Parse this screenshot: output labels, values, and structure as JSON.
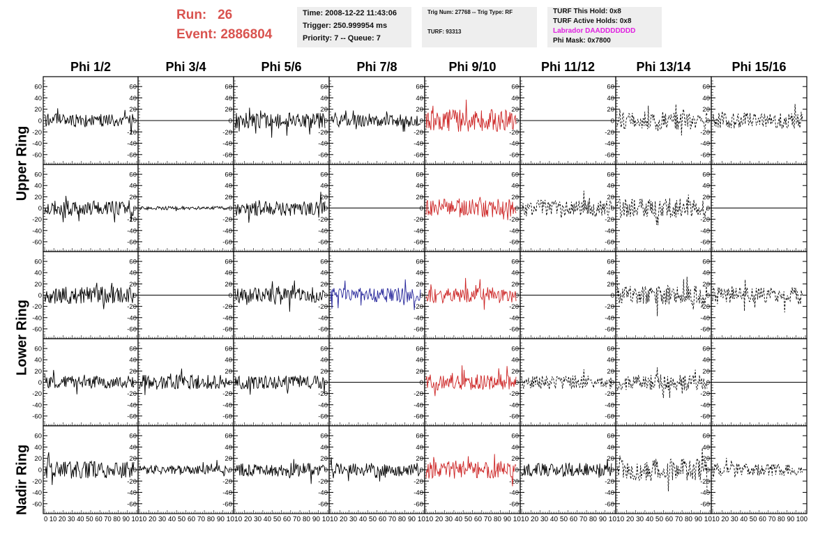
{
  "run_event": {
    "run_label": "Run:",
    "run_value": "26",
    "event_label": "Event:",
    "event_value": "2886804"
  },
  "info_time": {
    "time": "Time: 2008-12-22 11:43:06",
    "trigger": "Trigger: 250.999954 ms",
    "priority": "Priority: 7 -- Queue: 7"
  },
  "info_trig": {
    "trig": "Trig Num: 27768 -- Trig Type: RF",
    "turf": "TURF: 93313"
  },
  "info_turf": {
    "this_hold": "TURF This Hold: 0x8",
    "active_holds": "TURF Active Holds: 0x8",
    "labrador": "Labrador DAADDDDDDD",
    "phi_mask": "Phi Mask: 0x7800",
    "labrador_color": "#e020e0"
  },
  "columns": [
    "Phi 1/2",
    "Phi 3/4",
    "Phi 5/6",
    "Phi 7/8",
    "Phi 9/10",
    "Phi 11/12",
    "Phi 13/14",
    "Phi 15/16"
  ],
  "rows": [
    "Upper Ring",
    "Lower Ring",
    "Nadir Ring"
  ],
  "colors": {
    "black": "#000000",
    "red": "#cc2222",
    "blue": "#222299",
    "title": "#d9534f"
  },
  "chart_data": {
    "type": "line",
    "title": "",
    "x_ticks": [
      "0",
      "10",
      "20",
      "30",
      "40",
      "50",
      "60",
      "70",
      "80",
      "90",
      "100"
    ],
    "x_tick_strip_text": [
      "0 10 20 30 40 50 60 70 80 90 10",
      "10 20 30 40 50 60 70 80 90 10",
      "10 20 30 40 50 60 70 80 90 10",
      "10 20 30 40 50 60 70 80 90 10",
      "10 20 30 40 50 60 70 80 90 10",
      "10 20 30 40 50 60 70 80 90 10",
      "10 20 30 40 50 60 70 80 90 10",
      "10 20 30 40 50 60 70 80 90 100"
    ],
    "y_ticks": [
      "60",
      "40",
      "20",
      "0",
      "-20",
      "-40",
      "-60"
    ],
    "ylim": [
      -75,
      75
    ],
    "xlim": [
      0,
      100
    ],
    "panel_rows": 5,
    "panel_cols": 8,
    "panels": [
      {
        "row": 0,
        "col": 0,
        "style": "solid",
        "color": "black",
        "amp": 12,
        "seed": 11
      },
      {
        "row": 0,
        "col": 1,
        "style": "flat",
        "color": "black",
        "amp": 0,
        "seed": 12
      },
      {
        "row": 0,
        "col": 2,
        "style": "solid",
        "color": "black",
        "amp": 14,
        "seed": 13
      },
      {
        "row": 0,
        "col": 3,
        "style": "solid",
        "color": "black",
        "amp": 11,
        "seed": 14
      },
      {
        "row": 0,
        "col": 4,
        "style": "solid",
        "color": "red",
        "amp": 20,
        "seed": 15
      },
      {
        "row": 0,
        "col": 5,
        "style": "flat",
        "color": "black",
        "amp": 0,
        "seed": 16
      },
      {
        "row": 0,
        "col": 6,
        "style": "dashed",
        "color": "black",
        "amp": 16,
        "seed": 17
      },
      {
        "row": 0,
        "col": 7,
        "style": "dashed",
        "color": "black",
        "amp": 14,
        "seed": 18
      },
      {
        "row": 1,
        "col": 0,
        "style": "solid",
        "color": "black",
        "amp": 14,
        "seed": 21
      },
      {
        "row": 1,
        "col": 1,
        "style": "solid",
        "color": "black",
        "amp": 3,
        "seed": 22
      },
      {
        "row": 1,
        "col": 2,
        "style": "solid",
        "color": "black",
        "amp": 14,
        "seed": 23
      },
      {
        "row": 1,
        "col": 3,
        "style": "flat",
        "color": "black",
        "amp": 0,
        "seed": 24
      },
      {
        "row": 1,
        "col": 4,
        "style": "solid",
        "color": "red",
        "amp": 17,
        "seed": 25
      },
      {
        "row": 1,
        "col": 5,
        "style": "dashed",
        "color": "black",
        "amp": 15,
        "seed": 26
      },
      {
        "row": 1,
        "col": 6,
        "style": "dashed",
        "color": "black",
        "amp": 17,
        "seed": 27
      },
      {
        "row": 1,
        "col": 7,
        "style": "flat",
        "color": "black",
        "amp": 0,
        "seed": 28
      },
      {
        "row": 2,
        "col": 0,
        "style": "solid",
        "color": "black",
        "amp": 15,
        "seed": 31
      },
      {
        "row": 2,
        "col": 1,
        "style": "flat",
        "color": "black",
        "amp": 0,
        "seed": 32
      },
      {
        "row": 2,
        "col": 2,
        "style": "solid",
        "color": "black",
        "amp": 14,
        "seed": 33
      },
      {
        "row": 2,
        "col": 3,
        "style": "solid",
        "color": "blue",
        "amp": 13,
        "seed": 34
      },
      {
        "row": 2,
        "col": 4,
        "style": "solid",
        "color": "red",
        "amp": 14,
        "seed": 35
      },
      {
        "row": 2,
        "col": 5,
        "style": "flat",
        "color": "black",
        "amp": 0,
        "seed": 36
      },
      {
        "row": 2,
        "col": 6,
        "style": "dashed",
        "color": "black",
        "amp": 17,
        "seed": 37
      },
      {
        "row": 2,
        "col": 7,
        "style": "dashed",
        "color": "black",
        "amp": 14,
        "seed": 38
      },
      {
        "row": 3,
        "col": 0,
        "style": "solid",
        "color": "black",
        "amp": 11,
        "seed": 41
      },
      {
        "row": 3,
        "col": 1,
        "style": "solid",
        "color": "black",
        "amp": 13,
        "seed": 42
      },
      {
        "row": 3,
        "col": 2,
        "style": "solid",
        "color": "black",
        "amp": 12,
        "seed": 43
      },
      {
        "row": 3,
        "col": 3,
        "style": "flat",
        "color": "black",
        "amp": 0,
        "seed": 44
      },
      {
        "row": 3,
        "col": 4,
        "style": "solid",
        "color": "red",
        "amp": 14,
        "seed": 45
      },
      {
        "row": 3,
        "col": 5,
        "style": "dashed",
        "color": "black",
        "amp": 12,
        "seed": 46
      },
      {
        "row": 3,
        "col": 6,
        "style": "dashed",
        "color": "black",
        "amp": 14,
        "seed": 47
      },
      {
        "row": 3,
        "col": 7,
        "style": "flat",
        "color": "black",
        "amp": 0,
        "seed": 48
      },
      {
        "row": 4,
        "col": 0,
        "style": "solid",
        "color": "black",
        "amp": 15,
        "seed": 51
      },
      {
        "row": 4,
        "col": 1,
        "style": "solid",
        "color": "black",
        "amp": 8,
        "seed": 52
      },
      {
        "row": 4,
        "col": 2,
        "style": "solid",
        "color": "black",
        "amp": 12,
        "seed": 53
      },
      {
        "row": 4,
        "col": 3,
        "style": "solid",
        "color": "black",
        "amp": 12,
        "seed": 54
      },
      {
        "row": 4,
        "col": 4,
        "style": "solid",
        "color": "red",
        "amp": 16,
        "seed": 55
      },
      {
        "row": 4,
        "col": 5,
        "style": "solid",
        "color": "black",
        "amp": 12,
        "seed": 56
      },
      {
        "row": 4,
        "col": 6,
        "style": "dashed",
        "color": "black",
        "amp": 20,
        "seed": 57
      },
      {
        "row": 4,
        "col": 7,
        "style": "dashed",
        "color": "black",
        "amp": 11,
        "seed": 58
      }
    ]
  }
}
